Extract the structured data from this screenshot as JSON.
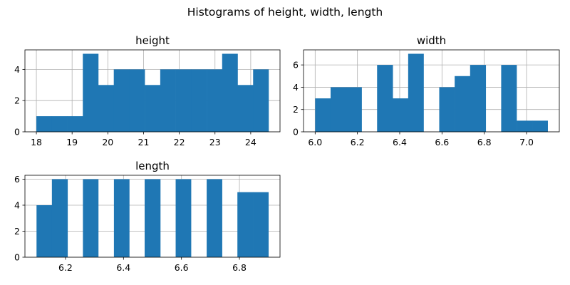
{
  "figure": {
    "suptitle": "Histograms of height, width, length"
  },
  "chart_data": [
    {
      "type": "bar",
      "title": "height",
      "xlabel": "",
      "ylabel": "",
      "grid": true,
      "bar_color": "#1f77b4",
      "xlim": [
        17.68,
        24.82
      ],
      "ylim": [
        0,
        5.25
      ],
      "x_ticks": [
        18,
        19,
        20,
        21,
        22,
        23,
        24
      ],
      "y_ticks": [
        0,
        2,
        4
      ],
      "bin_edges": [
        18.0,
        18.433,
        18.867,
        19.3,
        19.733,
        20.167,
        20.6,
        21.033,
        21.467,
        21.9,
        22.333,
        22.767,
        23.2,
        23.633,
        24.067,
        24.5
      ],
      "counts": [
        1,
        1,
        1,
        5,
        3,
        4,
        4,
        3,
        4,
        4,
        4,
        4,
        5,
        3,
        4
      ]
    },
    {
      "type": "bar",
      "title": "width",
      "xlabel": "",
      "ylabel": "",
      "grid": true,
      "bar_color": "#1f77b4",
      "xlim": [
        5.945,
        7.155
      ],
      "ylim": [
        0,
        7.35
      ],
      "x_ticks": [
        6.0,
        6.2,
        6.4,
        6.6,
        6.8,
        7.0
      ],
      "y_ticks": [
        0,
        2,
        4,
        6
      ],
      "bin_edges": [
        6.0,
        6.073,
        6.147,
        6.22,
        6.293,
        6.367,
        6.44,
        6.513,
        6.587,
        6.66,
        6.733,
        6.807,
        6.88,
        6.953,
        7.027,
        7.1
      ],
      "counts": [
        3,
        4,
        4,
        0,
        6,
        3,
        7,
        0,
        4,
        5,
        6,
        0,
        6,
        1,
        1
      ]
    },
    {
      "type": "bar",
      "title": "length",
      "xlabel": "",
      "ylabel": "",
      "grid": true,
      "bar_color": "#1f77b4",
      "xlim": [
        6.06,
        6.94
      ],
      "ylim": [
        0,
        6.3
      ],
      "x_ticks": [
        6.2,
        6.4,
        6.6,
        6.8
      ],
      "y_ticks": [
        0,
        2,
        4,
        6
      ],
      "bin_edges": [
        6.1,
        6.153,
        6.207,
        6.26,
        6.313,
        6.367,
        6.42,
        6.473,
        6.527,
        6.58,
        6.633,
        6.687,
        6.74,
        6.793,
        6.847,
        6.9
      ],
      "counts": [
        4,
        6,
        0,
        6,
        0,
        6,
        0,
        6,
        0,
        6,
        0,
        6,
        0,
        5,
        5
      ]
    }
  ]
}
